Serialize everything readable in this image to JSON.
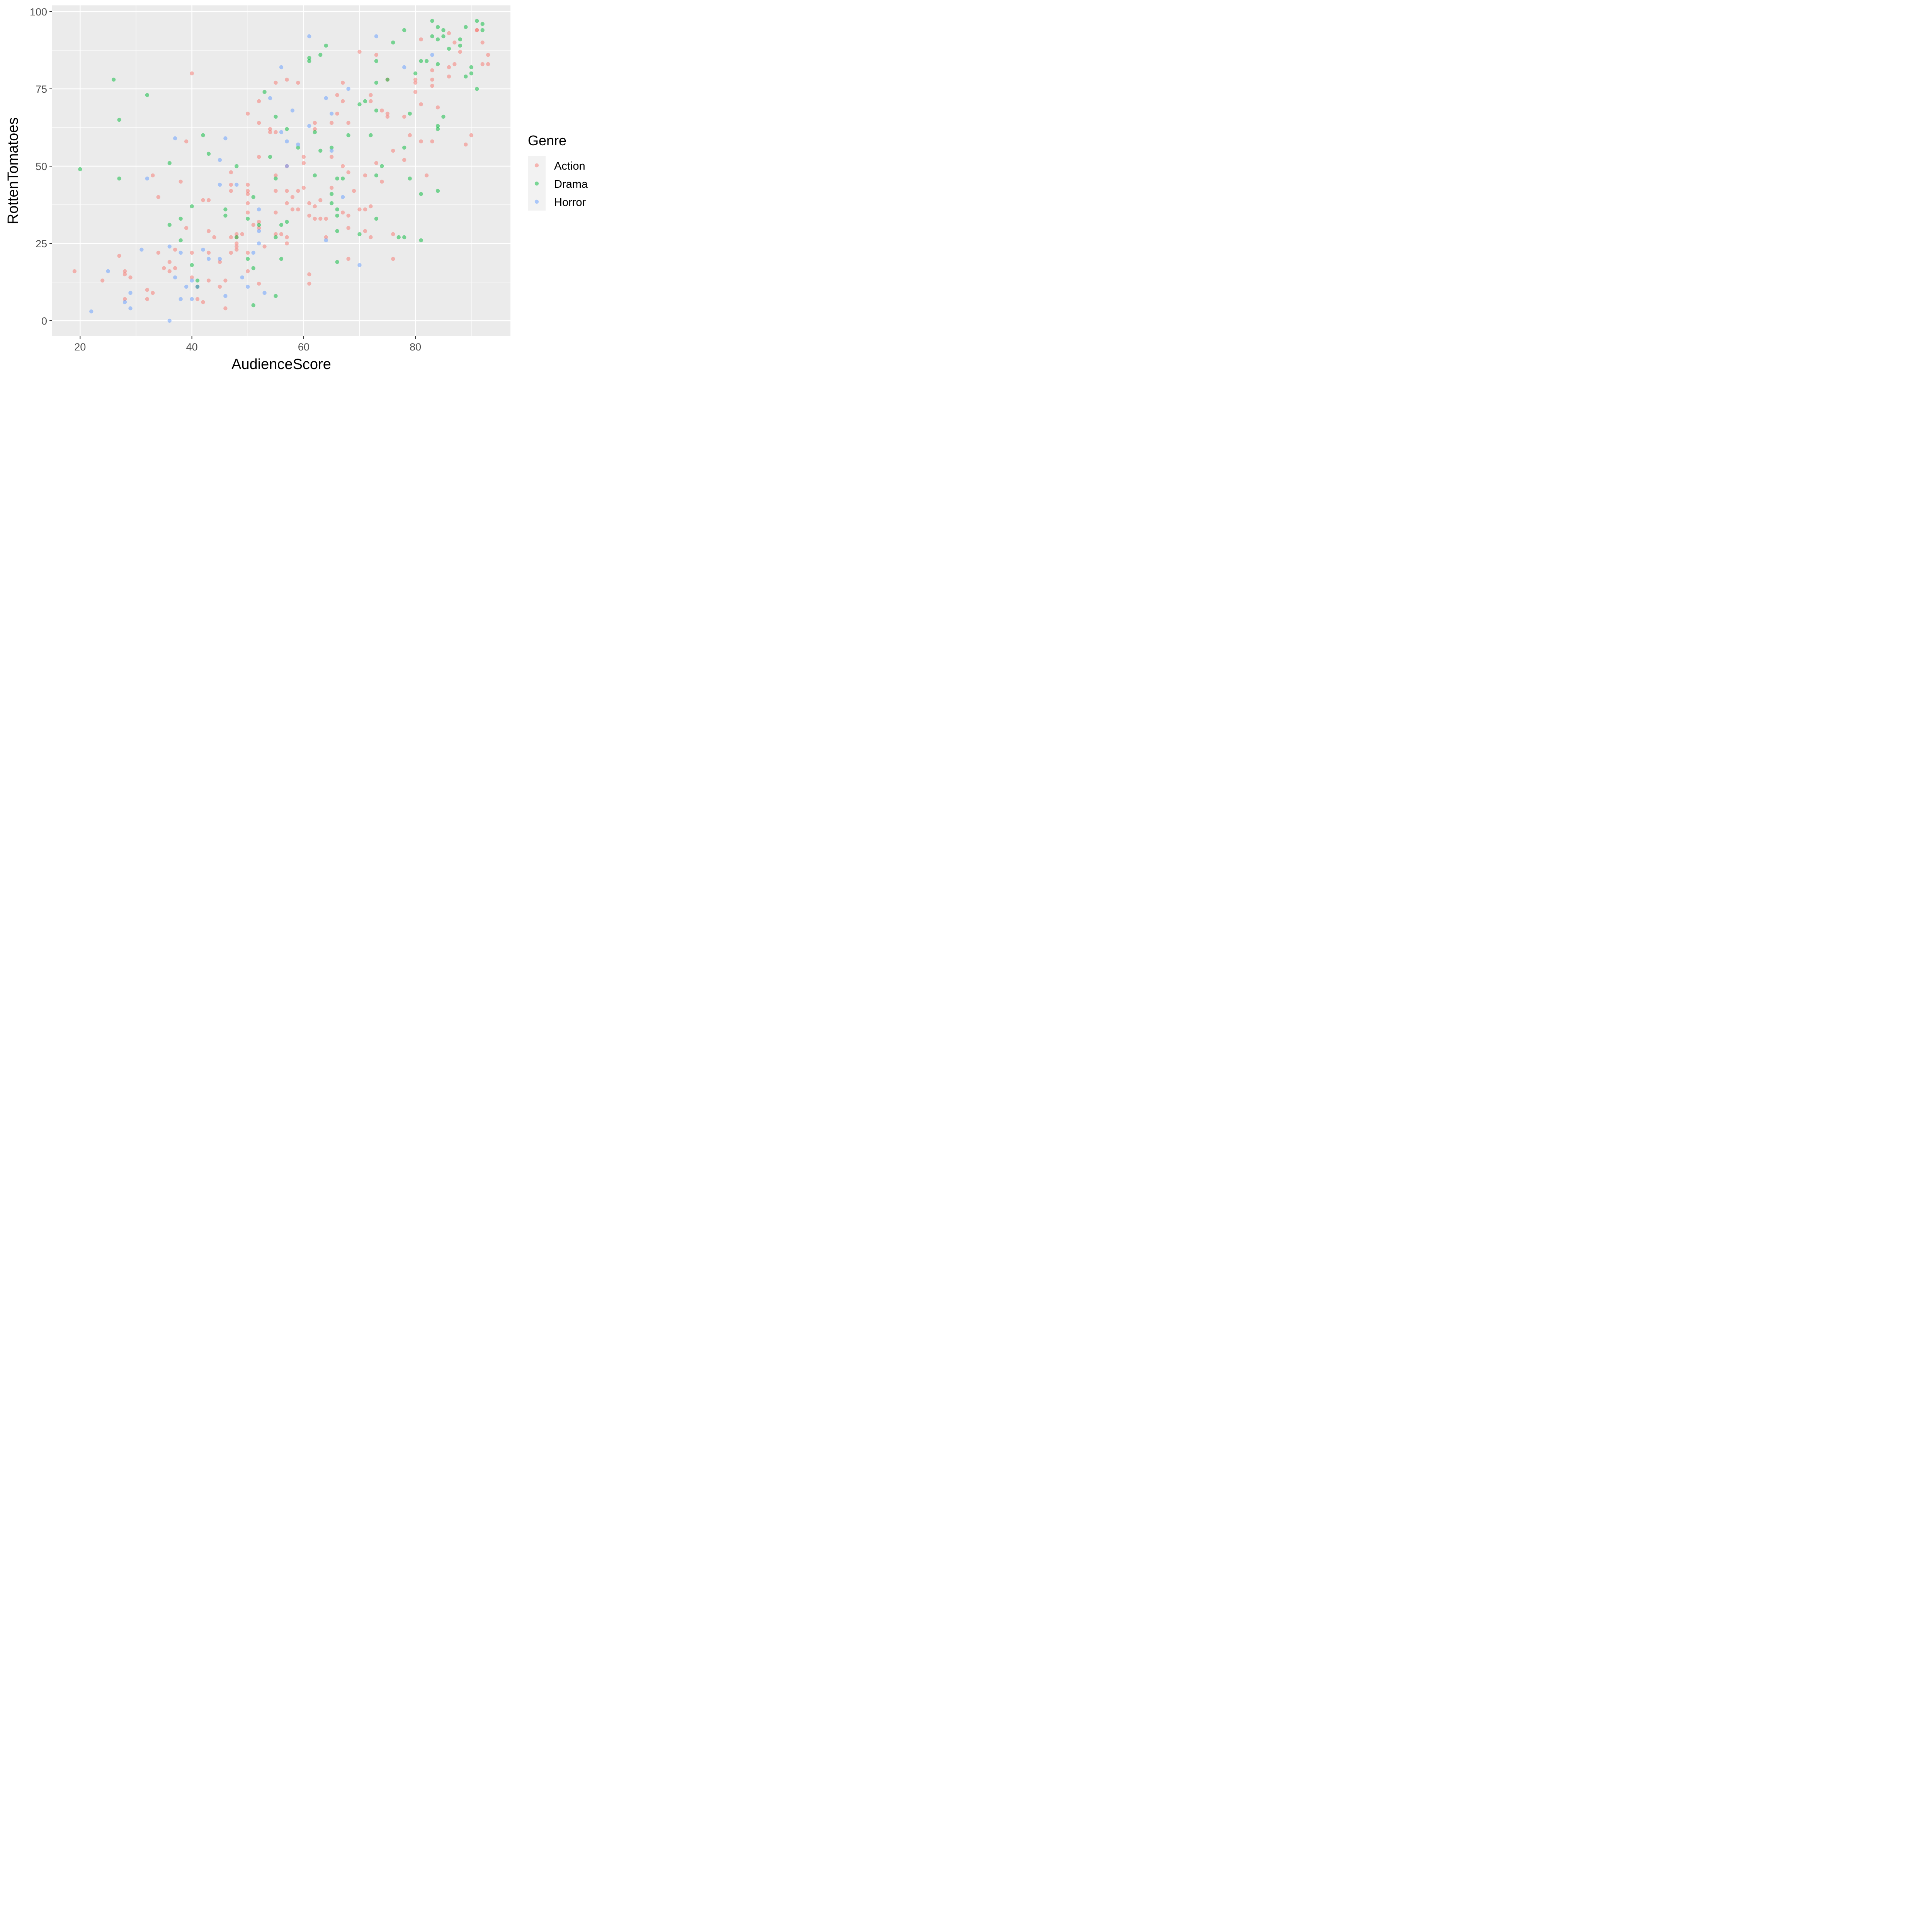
{
  "chart_data": {
    "type": "scatter",
    "xlabel": "AudienceScore",
    "ylabel": "RottenTomatoes",
    "xlim": [
      15,
      97
    ],
    "ylim": [
      -5,
      102
    ],
    "x_ticks": [
      20,
      40,
      60,
      80
    ],
    "x_tick_labels": [
      "20",
      "40",
      "60",
      "80"
    ],
    "y_ticks": [
      0,
      25,
      50,
      75,
      100
    ],
    "y_tick_labels": [
      "0",
      "25",
      "50",
      "75",
      "100"
    ],
    "grid": true,
    "legend": {
      "title": "Genre",
      "placement": "right"
    },
    "series": [
      {
        "name": "Action",
        "color": "#F8766D",
        "points": [
          [
            19,
            16
          ],
          [
            24,
            13
          ],
          [
            27,
            21
          ],
          [
            28,
            16
          ],
          [
            28,
            15
          ],
          [
            28,
            7
          ],
          [
            29,
            14
          ],
          [
            32,
            10
          ],
          [
            32,
            7
          ],
          [
            33,
            9
          ],
          [
            33,
            47
          ],
          [
            34,
            22
          ],
          [
            34,
            40
          ],
          [
            35,
            17
          ],
          [
            36,
            19
          ],
          [
            36,
            16
          ],
          [
            37,
            23
          ],
          [
            37,
            17
          ],
          [
            38,
            45
          ],
          [
            39,
            58
          ],
          [
            39,
            30
          ],
          [
            40,
            80
          ],
          [
            40,
            22
          ],
          [
            40,
            14
          ],
          [
            41,
            11
          ],
          [
            41,
            7
          ],
          [
            42,
            39
          ],
          [
            42,
            6
          ],
          [
            43,
            39
          ],
          [
            43,
            29
          ],
          [
            43,
            22
          ],
          [
            43,
            13
          ],
          [
            44,
            27
          ],
          [
            45,
            19
          ],
          [
            45,
            11
          ],
          [
            46,
            13
          ],
          [
            46,
            4
          ],
          [
            47,
            48
          ],
          [
            47,
            44
          ],
          [
            47,
            42
          ],
          [
            47,
            27
          ],
          [
            47,
            22
          ],
          [
            48,
            28
          ],
          [
            48,
            27
          ],
          [
            48,
            25
          ],
          [
            48,
            24
          ],
          [
            48,
            23
          ],
          [
            49,
            28
          ],
          [
            50,
            67
          ],
          [
            50,
            44
          ],
          [
            50,
            42
          ],
          [
            50,
            41
          ],
          [
            50,
            38
          ],
          [
            50,
            35
          ],
          [
            50,
            22
          ],
          [
            50,
            16
          ],
          [
            51,
            31
          ],
          [
            52,
            71
          ],
          [
            52,
            64
          ],
          [
            52,
            53
          ],
          [
            52,
            32
          ],
          [
            52,
            30
          ],
          [
            52,
            12
          ],
          [
            53,
            24
          ],
          [
            54,
            62
          ],
          [
            54,
            61
          ],
          [
            55,
            77
          ],
          [
            55,
            61
          ],
          [
            55,
            47
          ],
          [
            55,
            42
          ],
          [
            55,
            35
          ],
          [
            55,
            28
          ],
          [
            56,
            28
          ],
          [
            57,
            78
          ],
          [
            57,
            50
          ],
          [
            57,
            42
          ],
          [
            57,
            38
          ],
          [
            57,
            27
          ],
          [
            57,
            25
          ],
          [
            58,
            40
          ],
          [
            58,
            36
          ],
          [
            59,
            77
          ],
          [
            59,
            42
          ],
          [
            59,
            36
          ],
          [
            60,
            53
          ],
          [
            60,
            51
          ],
          [
            60,
            43
          ],
          [
            61,
            38
          ],
          [
            61,
            34
          ],
          [
            61,
            15
          ],
          [
            61,
            12
          ],
          [
            62,
            64
          ],
          [
            62,
            62
          ],
          [
            62,
            37
          ],
          [
            62,
            33
          ],
          [
            63,
            39
          ],
          [
            63,
            33
          ],
          [
            64,
            33
          ],
          [
            64,
            27
          ],
          [
            65,
            64
          ],
          [
            65,
            53
          ],
          [
            65,
            43
          ],
          [
            66,
            73
          ],
          [
            66,
            67
          ],
          [
            67,
            77
          ],
          [
            67,
            71
          ],
          [
            67,
            50
          ],
          [
            67,
            35
          ],
          [
            68,
            64
          ],
          [
            68,
            48
          ],
          [
            68,
            34
          ],
          [
            68,
            30
          ],
          [
            68,
            20
          ],
          [
            69,
            42
          ],
          [
            70,
            87
          ],
          [
            70,
            36
          ],
          [
            71,
            47
          ],
          [
            71,
            36
          ],
          [
            71,
            29
          ],
          [
            72,
            73
          ],
          [
            72,
            71
          ],
          [
            72,
            37
          ],
          [
            72,
            27
          ],
          [
            73,
            86
          ],
          [
            73,
            51
          ],
          [
            74,
            68
          ],
          [
            74,
            45
          ],
          [
            75,
            67
          ],
          [
            75,
            66
          ],
          [
            75,
            78
          ],
          [
            76,
            55
          ],
          [
            76,
            28
          ],
          [
            76,
            20
          ],
          [
            78,
            66
          ],
          [
            78,
            52
          ],
          [
            79,
            60
          ],
          [
            80,
            78
          ],
          [
            80,
            77
          ],
          [
            80,
            74
          ],
          [
            81,
            91
          ],
          [
            81,
            70
          ],
          [
            81,
            58
          ],
          [
            82,
            47
          ],
          [
            83,
            81
          ],
          [
            83,
            78
          ],
          [
            83,
            76
          ],
          [
            83,
            58
          ],
          [
            84,
            69
          ],
          [
            86,
            93
          ],
          [
            86,
            82
          ],
          [
            86,
            79
          ],
          [
            87,
            90
          ],
          [
            87,
            83
          ],
          [
            88,
            87
          ],
          [
            89,
            57
          ],
          [
            90,
            60
          ],
          [
            91,
            94
          ],
          [
            91,
            94
          ],
          [
            92,
            90
          ],
          [
            92,
            83
          ],
          [
            93,
            86
          ],
          [
            93,
            83
          ]
        ]
      },
      {
        "name": "Drama",
        "color": "#00BA38",
        "points": [
          [
            20,
            49
          ],
          [
            26,
            78
          ],
          [
            27,
            65
          ],
          [
            27,
            46
          ],
          [
            32,
            73
          ],
          [
            36,
            51
          ],
          [
            36,
            31
          ],
          [
            38,
            33
          ],
          [
            38,
            26
          ],
          [
            40,
            37
          ],
          [
            40,
            18
          ],
          [
            41,
            13
          ],
          [
            41,
            11
          ],
          [
            42,
            60
          ],
          [
            43,
            54
          ],
          [
            46,
            36
          ],
          [
            46,
            34
          ],
          [
            48,
            50
          ],
          [
            48,
            27
          ],
          [
            50,
            33
          ],
          [
            50,
            20
          ],
          [
            51,
            40
          ],
          [
            51,
            17
          ],
          [
            51,
            5
          ],
          [
            52,
            31
          ],
          [
            53,
            74
          ],
          [
            54,
            53
          ],
          [
            55,
            66
          ],
          [
            55,
            46
          ],
          [
            55,
            27
          ],
          [
            55,
            8
          ],
          [
            56,
            31
          ],
          [
            56,
            20
          ],
          [
            57,
            62
          ],
          [
            57,
            32
          ],
          [
            59,
            56
          ],
          [
            61,
            85
          ],
          [
            61,
            84
          ],
          [
            62,
            61
          ],
          [
            62,
            47
          ],
          [
            63,
            86
          ],
          [
            63,
            55
          ],
          [
            64,
            89
          ],
          [
            65,
            56
          ],
          [
            65,
            41
          ],
          [
            65,
            38
          ],
          [
            66,
            46
          ],
          [
            66,
            36
          ],
          [
            66,
            34
          ],
          [
            66,
            29
          ],
          [
            66,
            19
          ],
          [
            67,
            46
          ],
          [
            68,
            60
          ],
          [
            70,
            70
          ],
          [
            70,
            28
          ],
          [
            71,
            71
          ],
          [
            72,
            60
          ],
          [
            73,
            84
          ],
          [
            73,
            77
          ],
          [
            73,
            68
          ],
          [
            73,
            47
          ],
          [
            73,
            33
          ],
          [
            74,
            50
          ],
          [
            75,
            78
          ],
          [
            76,
            90
          ],
          [
            77,
            27
          ],
          [
            78,
            94
          ],
          [
            78,
            56
          ],
          [
            78,
            27
          ],
          [
            79,
            67
          ],
          [
            79,
            46
          ],
          [
            80,
            80
          ],
          [
            81,
            84
          ],
          [
            81,
            41
          ],
          [
            81,
            26
          ],
          [
            82,
            84
          ],
          [
            83,
            97
          ],
          [
            83,
            92
          ],
          [
            84,
            95
          ],
          [
            84,
            91
          ],
          [
            84,
            83
          ],
          [
            84,
            63
          ],
          [
            84,
            62
          ],
          [
            84,
            42
          ],
          [
            85,
            94
          ],
          [
            85,
            92
          ],
          [
            85,
            66
          ],
          [
            86,
            88
          ],
          [
            88,
            91
          ],
          [
            88,
            89
          ],
          [
            89,
            95
          ],
          [
            89,
            79
          ],
          [
            90,
            82
          ],
          [
            90,
            80
          ],
          [
            91,
            97
          ],
          [
            91,
            75
          ],
          [
            92,
            96
          ],
          [
            92,
            94
          ]
        ]
      },
      {
        "name": "Horror",
        "color": "#619CFF",
        "points": [
          [
            22,
            3
          ],
          [
            25,
            16
          ],
          [
            28,
            6
          ],
          [
            29,
            9
          ],
          [
            29,
            4
          ],
          [
            31,
            23
          ],
          [
            32,
            46
          ],
          [
            36,
            24
          ],
          [
            36,
            0
          ],
          [
            37,
            59
          ],
          [
            37,
            14
          ],
          [
            38,
            22
          ],
          [
            38,
            7
          ],
          [
            39,
            11
          ],
          [
            40,
            13
          ],
          [
            40,
            7
          ],
          [
            41,
            11
          ],
          [
            42,
            23
          ],
          [
            43,
            20
          ],
          [
            45,
            52
          ],
          [
            45,
            44
          ],
          [
            45,
            20
          ],
          [
            46,
            59
          ],
          [
            46,
            8
          ],
          [
            48,
            44
          ],
          [
            49,
            14
          ],
          [
            50,
            11
          ],
          [
            51,
            22
          ],
          [
            52,
            36
          ],
          [
            52,
            29
          ],
          [
            52,
            25
          ],
          [
            53,
            9
          ],
          [
            54,
            72
          ],
          [
            56,
            82
          ],
          [
            56,
            61
          ],
          [
            57,
            58
          ],
          [
            57,
            50
          ],
          [
            58,
            68
          ],
          [
            59,
            57
          ],
          [
            61,
            92
          ],
          [
            61,
            63
          ],
          [
            64,
            72
          ],
          [
            64,
            26
          ],
          [
            65,
            67
          ],
          [
            65,
            55
          ],
          [
            67,
            40
          ],
          [
            68,
            75
          ],
          [
            70,
            18
          ],
          [
            73,
            92
          ],
          [
            78,
            82
          ],
          [
            83,
            86
          ]
        ]
      }
    ]
  }
}
